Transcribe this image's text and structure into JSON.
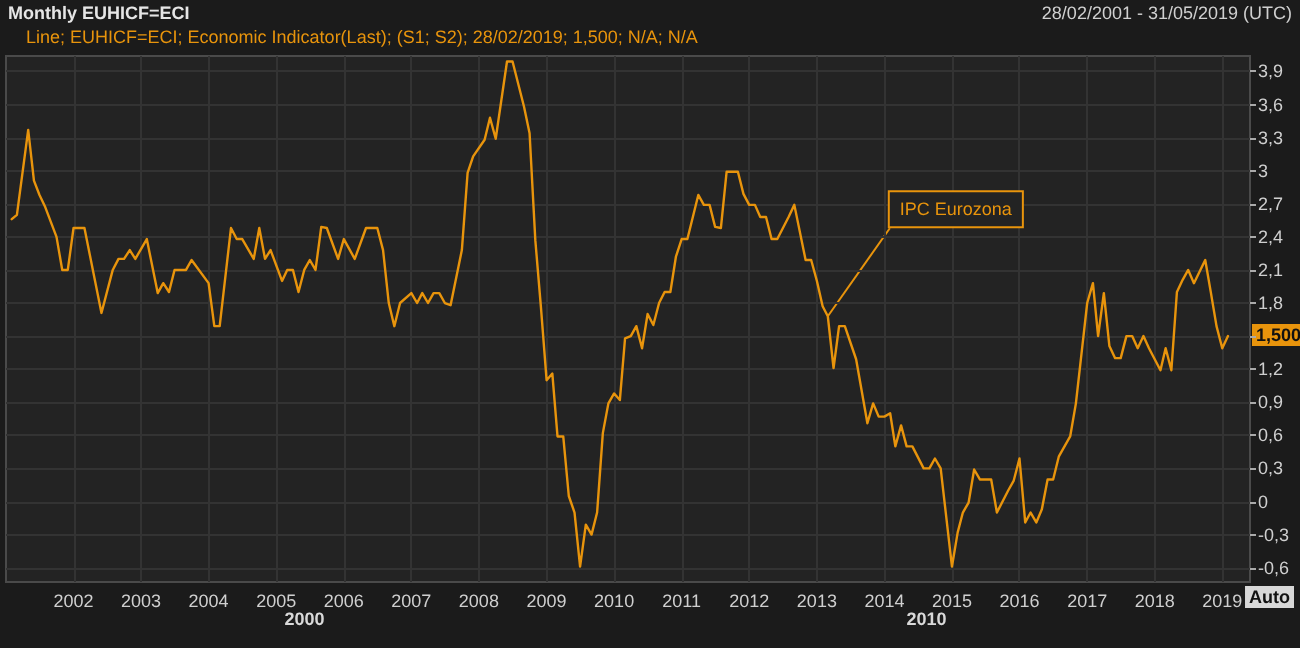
{
  "chart_data": {
    "type": "line",
    "title": "Monthly EUHICF=ECI",
    "subtitle": "28/02/2001 - 31/05/2019 (UTC)",
    "legend": "top left",
    "grid": true,
    "marker": "none",
    "line_style": "solid",
    "xlim": [
      "2001-01-01",
      "2019-05-31"
    ],
    "xticks": [
      "2002",
      "2003",
      "2004",
      "2005",
      "2006",
      "2007",
      "2008",
      "2009",
      "2010",
      "2011",
      "2012",
      "2013",
      "2014",
      "2015",
      "2016",
      "2017",
      "2018",
      "2019"
    ],
    "ylim": [
      -0.73,
      4.04
    ],
    "yticks": [
      {
        "value": -0.6,
        "label": "-0,6"
      },
      {
        "value": -0.3,
        "label": "-0,3"
      },
      0,
      {
        "value": 0.3,
        "label": "0,3"
      },
      {
        "value": 0.6,
        "label": "0,6"
      },
      {
        "value": 0.9,
        "label": "0,9"
      },
      {
        "value": 1.2,
        "label": "1,2"
      },
      {
        "value": 1.5,
        "label": null
      },
      {
        "value": 1.8,
        "label": "1,8"
      },
      {
        "value": 2.1,
        "label": "2,1"
      },
      {
        "value": 2.4,
        "label": "2,4"
      },
      {
        "value": 2.7,
        "label": "2,7"
      },
      3,
      {
        "value": 3.3,
        "label": "3,3"
      },
      {
        "value": 3.6,
        "label": "3,6"
      },
      {
        "value": 3.9,
        "label": "3,9"
      }
    ],
    "annotations": [
      {
        "text": "IPC Eurozona",
        "x": "2013-03",
        "y": 1.68
      },
      {
        "text": "1,500",
        "x": "2019-02",
        "y": 1.5
      },
      "2000",
      "2010",
      "Auto"
    ],
    "series": [
      {
        "name": "Line; EUHICF=ECI; Economic Indicator(Last); (S1; S2); 28/02/2019; 1,500; N/A; N/A",
        "color": "#e8940c",
        "x": [
          "2001-02",
          "2001-03",
          "2001-05",
          "2001-06",
          "2001-07",
          "2001-08",
          "2001-10",
          "2001-11",
          "2001-12",
          "2002-01",
          "2002-03",
          "2002-06",
          "2002-08",
          "2002-09",
          "2002-10",
          "2002-11",
          "2002-12",
          "2003-02",
          "2003-04",
          "2003-05",
          "2003-06",
          "2003-07",
          "2003-09",
          "2003-10",
          "2004-01",
          "2004-02",
          "2004-03",
          "2004-05",
          "2004-06",
          "2004-07",
          "2004-09",
          "2004-10",
          "2004-11",
          "2004-12",
          "2005-02",
          "2005-03",
          "2005-04",
          "2005-05",
          "2005-06",
          "2005-07",
          "2005-08",
          "2005-09",
          "2005-10",
          "2005-12",
          "2006-01",
          "2006-03",
          "2006-05",
          "2006-07",
          "2006-08",
          "2006-09",
          "2006-10",
          "2006-11",
          "2007-01",
          "2007-02",
          "2007-03",
          "2007-04",
          "2007-05",
          "2007-06",
          "2007-07",
          "2007-08",
          "2007-10",
          "2007-11",
          "2007-12",
          "2008-02",
          "2008-03",
          "2008-04",
          "2008-06",
          "2008-07",
          "2008-09",
          "2008-10",
          "2008-11",
          "2008-12",
          "2009-01",
          "2009-02",
          "2009-03",
          "2009-04",
          "2009-05",
          "2009-06",
          "2009-07",
          "2009-08",
          "2009-09",
          "2009-10",
          "2009-11",
          "2009-12",
          "2010-01",
          "2010-02",
          "2010-03",
          "2010-04",
          "2010-05",
          "2010-06",
          "2010-07",
          "2010-08",
          "2010-09",
          "2010-10",
          "2010-11",
          "2010-12",
          "2011-01",
          "2011-02",
          "2011-04",
          "2011-05",
          "2011-06",
          "2011-07",
          "2011-08",
          "2011-09",
          "2011-11",
          "2011-12",
          "2012-01",
          "2012-02",
          "2012-03",
          "2012-04",
          "2012-05",
          "2012-06",
          "2012-08",
          "2012-09",
          "2012-11",
          "2012-12",
          "2013-01",
          "2013-02",
          "2013-03",
          "2013-04",
          "2013-05",
          "2013-06",
          "2013-08",
          "2013-10",
          "2013-11",
          "2013-12",
          "2014-01",
          "2014-02",
          "2014-03",
          "2014-04",
          "2014-05",
          "2014-06",
          "2014-08",
          "2014-09",
          "2014-10",
          "2014-11",
          "2015-01",
          "2015-02",
          "2015-03",
          "2015-04",
          "2015-05",
          "2015-06",
          "2015-08",
          "2015-09",
          "2015-11",
          "2015-12",
          "2016-01",
          "2016-02",
          "2016-03",
          "2016-04",
          "2016-05",
          "2016-06",
          "2016-07",
          "2016-08",
          "2016-10",
          "2016-11",
          "2017-01",
          "2017-02",
          "2017-03",
          "2017-04",
          "2017-05",
          "2017-06",
          "2017-07",
          "2017-08",
          "2017-09",
          "2017-10",
          "2017-11",
          "2017-12",
          "2018-02",
          "2018-03",
          "2018-04",
          "2018-05",
          "2018-06",
          "2018-07",
          "2018-08",
          "2018-10",
          "2018-11",
          "2018-12",
          "2019-01",
          "2019-02"
        ],
        "values": [
          2.56,
          2.6,
          3.37,
          2.91,
          2.78,
          2.67,
          2.4,
          2.1,
          2.1,
          2.48,
          2.48,
          1.71,
          2.1,
          2.2,
          2.2,
          2.28,
          2.2,
          2.38,
          1.89,
          1.98,
          1.9,
          2.1,
          2.1,
          2.19,
          1.98,
          1.59,
          1.59,
          2.48,
          2.38,
          2.38,
          2.2,
          2.48,
          2.2,
          2.28,
          2.0,
          2.1,
          2.1,
          1.9,
          2.1,
          2.19,
          2.1,
          2.49,
          2.48,
          2.2,
          2.38,
          2.2,
          2.48,
          2.48,
          2.28,
          1.8,
          1.59,
          1.8,
          1.89,
          1.8,
          1.89,
          1.8,
          1.89,
          1.89,
          1.8,
          1.78,
          2.28,
          2.98,
          3.13,
          3.28,
          3.48,
          3.29,
          3.99,
          3.99,
          3.58,
          3.34,
          2.37,
          1.77,
          1.1,
          1.16,
          0.59,
          0.59,
          0.05,
          -0.1,
          -0.59,
          -0.21,
          -0.3,
          -0.1,
          0.62,
          0.89,
          0.98,
          0.92,
          1.48,
          1.5,
          1.59,
          1.39,
          1.7,
          1.6,
          1.8,
          1.9,
          1.9,
          2.22,
          2.38,
          2.38,
          2.78,
          2.69,
          2.69,
          2.49,
          2.48,
          2.99,
          2.99,
          2.79,
          2.69,
          2.69,
          2.58,
          2.58,
          2.38,
          2.38,
          2.58,
          2.69,
          2.19,
          2.19,
          2.0,
          1.77,
          1.68,
          1.21,
          1.59,
          1.59,
          1.29,
          0.71,
          0.89,
          0.77,
          0.77,
          0.8,
          0.5,
          0.69,
          0.5,
          0.5,
          0.3,
          0.3,
          0.39,
          0.3,
          -0.59,
          -0.28,
          -0.1,
          -0.01,
          0.29,
          0.2,
          0.2,
          -0.1,
          0.1,
          0.19,
          0.39,
          -0.19,
          -0.1,
          -0.19,
          -0.07,
          0.2,
          0.2,
          0.41,
          0.59,
          0.89,
          1.8,
          1.98,
          1.5,
          1.89,
          1.41,
          1.3,
          1.3,
          1.5,
          1.5,
          1.39,
          1.5,
          1.39,
          1.19,
          1.39,
          1.19,
          1.9,
          2.01,
          2.1,
          1.98,
          2.19,
          1.89,
          1.59,
          1.39,
          1.5
        ]
      }
    ]
  }
}
